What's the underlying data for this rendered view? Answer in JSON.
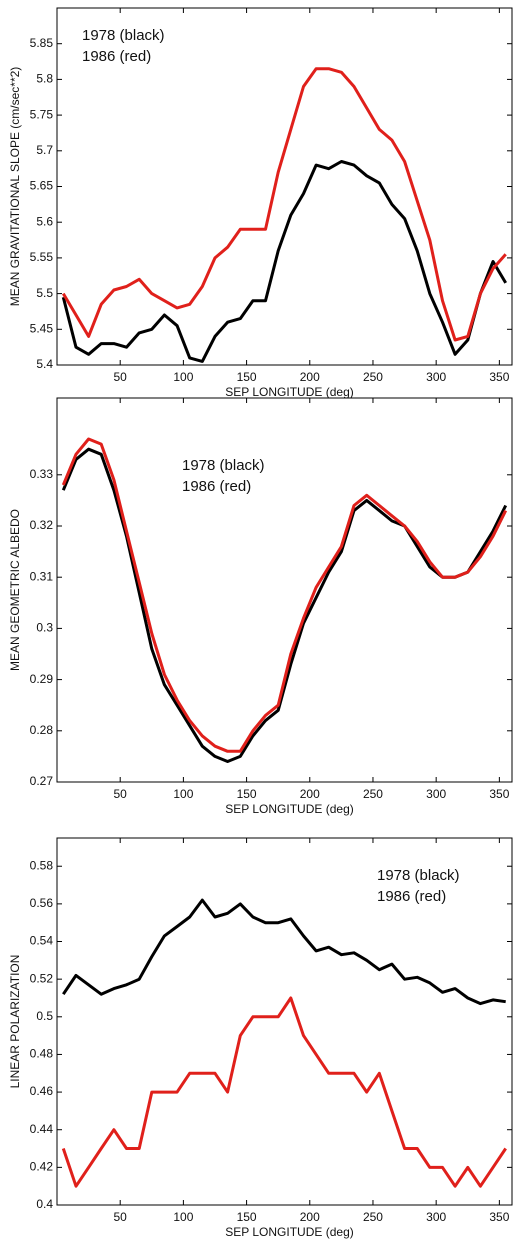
{
  "chart_data": [
    {
      "type": "line",
      "ylabel": "MEAN GRAVITATIONAL SLOPE (cm/sec**2)",
      "xlabel": "SEP LONGITUDE (deg)",
      "legend": "upper left",
      "x": [
        5,
        15,
        25,
        35,
        45,
        55,
        65,
        75,
        85,
        95,
        105,
        115,
        125,
        135,
        145,
        155,
        165,
        175,
        185,
        195,
        205,
        215,
        225,
        235,
        245,
        255,
        265,
        275,
        285,
        295,
        305,
        315,
        325,
        335,
        345,
        355
      ],
      "xlim": [
        0,
        360
      ],
      "xticks": [
        50,
        100,
        150,
        200,
        250,
        300,
        350
      ],
      "ylim": [
        5.4,
        5.9
      ],
      "yticks": [
        5.4,
        5.45,
        5.5,
        5.55,
        5.6,
        5.65,
        5.7,
        5.75,
        5.8,
        5.85
      ],
      "series": [
        {
          "name": "1978 (black)",
          "color": "#000000",
          "values": [
            5.495,
            5.425,
            5.415,
            5.43,
            5.43,
            5.425,
            5.445,
            5.45,
            5.47,
            5.455,
            5.41,
            5.405,
            5.44,
            5.46,
            5.465,
            5.49,
            5.49,
            5.56,
            5.61,
            5.64,
            5.68,
            5.675,
            5.685,
            5.68,
            5.665,
            5.655,
            5.625,
            5.605,
            5.56,
            5.5,
            5.46,
            5.415,
            5.435,
            5.5,
            5.545,
            5.515
          ]
        },
        {
          "name": "1986 (red)",
          "color": "#e0201b",
          "values": [
            5.5,
            5.47,
            5.44,
            5.485,
            5.505,
            5.51,
            5.52,
            5.5,
            5.49,
            5.48,
            5.485,
            5.51,
            5.55,
            5.565,
            5.59,
            5.59,
            5.59,
            5.67,
            5.73,
            5.79,
            5.815,
            5.815,
            5.81,
            5.79,
            5.76,
            5.73,
            5.715,
            5.685,
            5.63,
            5.575,
            5.49,
            5.435,
            5.44,
            5.5,
            5.535,
            5.555
          ]
        }
      ]
    },
    {
      "type": "line",
      "ylabel": "MEAN GEOMETRIC ALBEDO",
      "xlabel": "SEP LONGITUDE (deg)",
      "legend": "upper center",
      "x": [
        5,
        15,
        25,
        35,
        45,
        55,
        65,
        75,
        85,
        95,
        105,
        115,
        125,
        135,
        145,
        155,
        165,
        175,
        185,
        195,
        205,
        215,
        225,
        235,
        245,
        255,
        265,
        275,
        285,
        295,
        305,
        315,
        325,
        335,
        345,
        355
      ],
      "xlim": [
        0,
        360
      ],
      "xticks": [
        50,
        100,
        150,
        200,
        250,
        300,
        350
      ],
      "ylim": [
        0.27,
        0.345
      ],
      "yticks": [
        0.27,
        0.28,
        0.29,
        0.3,
        0.31,
        0.32,
        0.33
      ],
      "series": [
        {
          "name": "1978 (black)",
          "color": "#000000",
          "values": [
            0.327,
            0.333,
            0.335,
            0.334,
            0.327,
            0.318,
            0.307,
            0.296,
            0.289,
            0.285,
            0.281,
            0.277,
            0.275,
            0.274,
            0.275,
            0.279,
            0.282,
            0.284,
            0.293,
            0.301,
            0.306,
            0.311,
            0.315,
            0.323,
            0.325,
            0.323,
            0.321,
            0.32,
            0.316,
            0.312,
            0.31,
            0.31,
            0.311,
            0.315,
            0.319,
            0.324
          ]
        },
        {
          "name": "1986 (red)",
          "color": "#e0201b",
          "values": [
            0.328,
            0.334,
            0.337,
            0.336,
            0.329,
            0.319,
            0.309,
            0.299,
            0.291,
            0.286,
            0.282,
            0.279,
            0.277,
            0.276,
            0.276,
            0.28,
            0.283,
            0.285,
            0.295,
            0.302,
            0.308,
            0.312,
            0.316,
            0.324,
            0.326,
            0.324,
            0.322,
            0.32,
            0.317,
            0.313,
            0.31,
            0.31,
            0.311,
            0.314,
            0.318,
            0.323
          ]
        }
      ]
    },
    {
      "type": "line",
      "ylabel": "LINEAR POLARIZATION",
      "xlabel": "SEP LONGITUDE (deg)",
      "legend": "upper right",
      "x": [
        5,
        15,
        25,
        35,
        45,
        55,
        65,
        75,
        85,
        95,
        105,
        115,
        125,
        135,
        145,
        155,
        165,
        175,
        185,
        195,
        205,
        215,
        225,
        235,
        245,
        255,
        265,
        275,
        285,
        295,
        305,
        315,
        325,
        335,
        345,
        355
      ],
      "xlim": [
        0,
        360
      ],
      "xticks": [
        50,
        100,
        150,
        200,
        250,
        300,
        350
      ],
      "ylim": [
        0.4,
        0.595
      ],
      "yticks": [
        0.4,
        0.42,
        0.44,
        0.46,
        0.48,
        0.5,
        0.52,
        0.54,
        0.56,
        0.58
      ],
      "series": [
        {
          "name": "1978 (black)",
          "color": "#000000",
          "values": [
            0.512,
            0.522,
            0.517,
            0.512,
            0.515,
            0.517,
            0.52,
            0.532,
            0.543,
            0.548,
            0.553,
            0.562,
            0.553,
            0.555,
            0.56,
            0.553,
            0.55,
            0.55,
            0.552,
            0.543,
            0.535,
            0.537,
            0.533,
            0.534,
            0.53,
            0.525,
            0.528,
            0.52,
            0.521,
            0.518,
            0.513,
            0.515,
            0.51,
            0.507,
            0.509,
            0.508
          ]
        },
        {
          "name": "1986 (red)",
          "color": "#e0201b",
          "values": [
            0.43,
            0.41,
            0.42,
            0.43,
            0.44,
            0.43,
            0.43,
            0.46,
            0.46,
            0.46,
            0.47,
            0.47,
            0.47,
            0.46,
            0.49,
            0.5,
            0.5,
            0.5,
            0.51,
            0.49,
            0.48,
            0.47,
            0.47,
            0.47,
            0.46,
            0.47,
            0.45,
            0.43,
            0.43,
            0.42,
            0.42,
            0.41,
            0.42,
            0.41,
            0.42,
            0.43
          ]
        }
      ]
    }
  ]
}
